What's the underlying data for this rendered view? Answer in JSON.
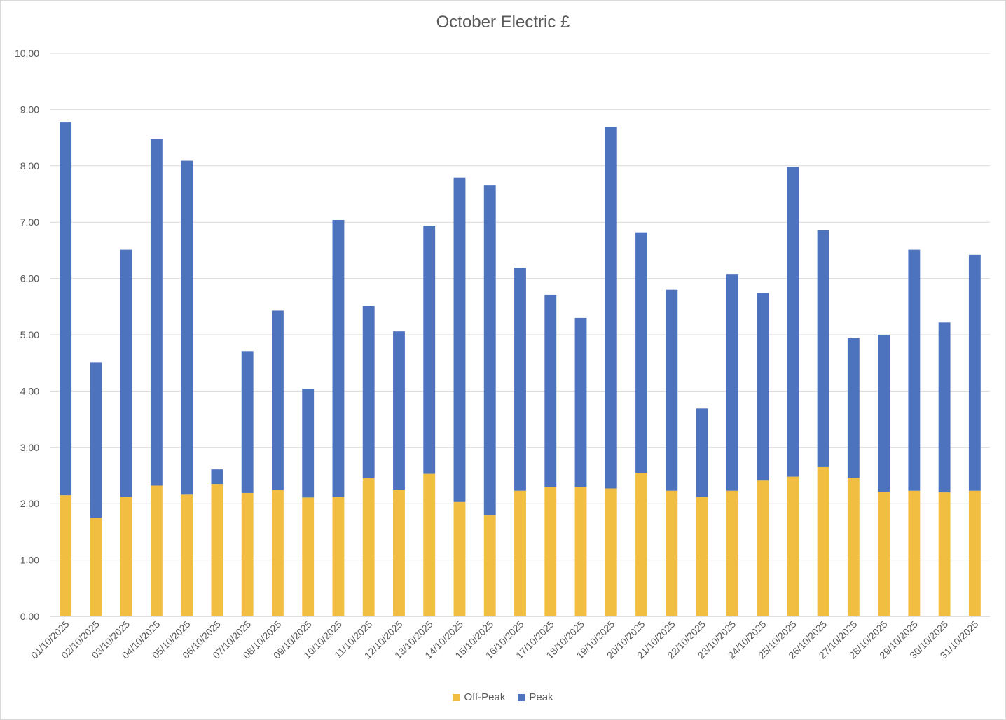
{
  "chart_data": {
    "type": "bar",
    "stacked": true,
    "title": "October Electric £",
    "xlabel": "",
    "ylabel": "",
    "ylim": [
      0,
      10
    ],
    "yticks": [
      "0.00",
      "1.00",
      "2.00",
      "3.00",
      "4.00",
      "5.00",
      "6.00",
      "7.00",
      "8.00",
      "9.00",
      "10.00"
    ],
    "grid": true,
    "legend_position": "bottom",
    "categories": [
      "01/10/2025",
      "02/10/2025",
      "03/10/2025",
      "04/10/2025",
      "05/10/2025",
      "06/10/2025",
      "07/10/2025",
      "08/10/2025",
      "09/10/2025",
      "10/10/2025",
      "11/10/2025",
      "12/10/2025",
      "13/10/2025",
      "14/10/2025",
      "15/10/2025",
      "16/10/2025",
      "17/10/2025",
      "18/10/2025",
      "19/10/2025",
      "20/10/2025",
      "21/10/2025",
      "22/10/2025",
      "23/10/2025",
      "24/10/2025",
      "25/10/2025",
      "26/10/2025",
      "27/10/2025",
      "28/10/2025",
      "29/10/2025",
      "30/10/2025",
      "31/10/2025"
    ],
    "series": [
      {
        "name": "Off-Peak",
        "color": "#F2BE42",
        "values": [
          2.15,
          1.75,
          2.12,
          2.32,
          2.16,
          2.35,
          2.19,
          2.24,
          2.11,
          2.12,
          2.45,
          2.25,
          2.53,
          2.03,
          1.79,
          2.23,
          2.3,
          2.3,
          2.27,
          2.55,
          2.23,
          2.12,
          2.23,
          2.41,
          2.48,
          2.65,
          2.46,
          2.21,
          2.23,
          2.2,
          2.23
        ]
      },
      {
        "name": "Peak",
        "color": "#4E73BE",
        "values": [
          6.63,
          2.76,
          4.39,
          6.15,
          5.93,
          0.26,
          2.52,
          3.19,
          1.93,
          4.92,
          3.06,
          2.81,
          4.41,
          5.76,
          5.87,
          3.96,
          3.41,
          3.0,
          6.42,
          4.27,
          3.57,
          1.57,
          3.85,
          3.33,
          5.5,
          4.21,
          2.48,
          2.79,
          4.28,
          3.02,
          4.19
        ]
      }
    ]
  }
}
